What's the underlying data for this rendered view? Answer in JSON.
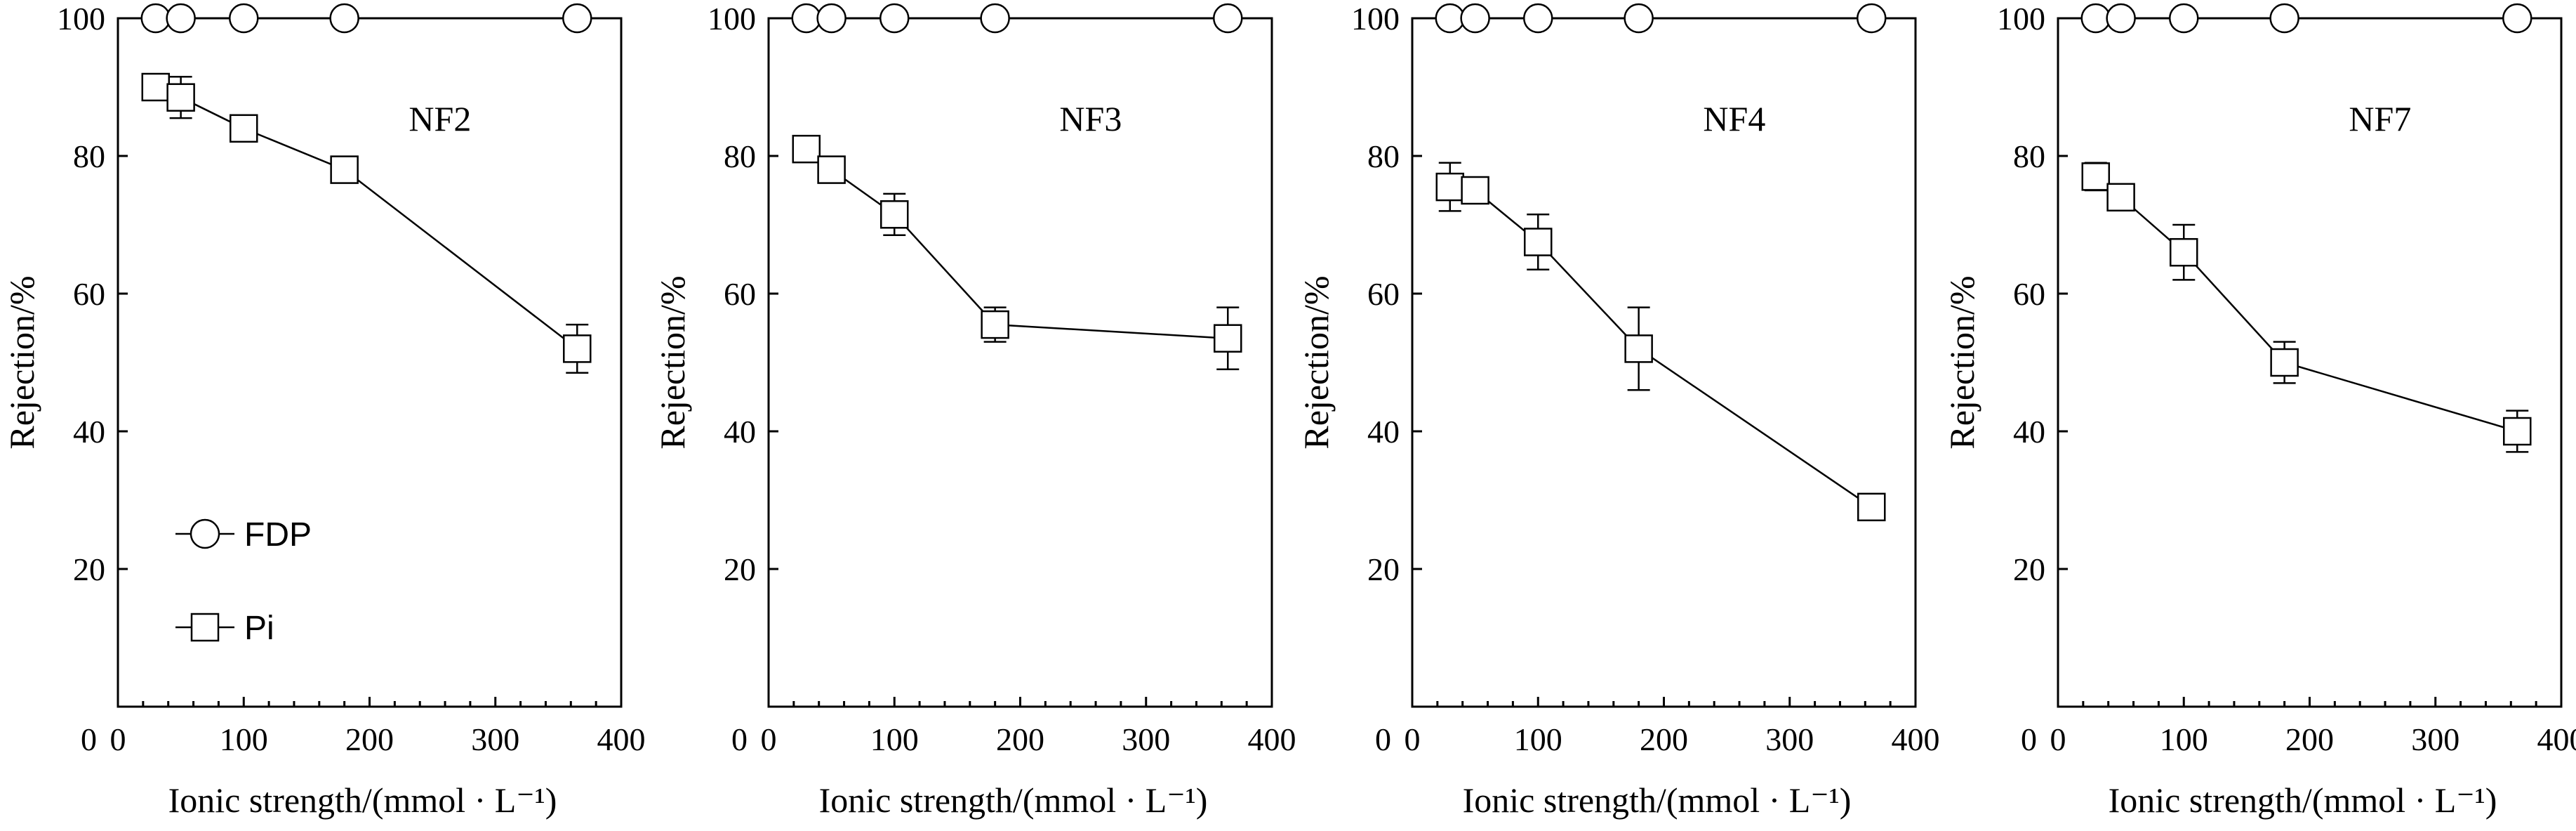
{
  "chart_data": [
    {
      "type": "scatter",
      "panel_label": "NF2",
      "xlabel": "Ionic strength/(mmol · L⁻¹)",
      "ylabel": "Rejection/%",
      "xlim": [
        0,
        400
      ],
      "ylim": [
        0,
        100
      ],
      "xticks": [
        0,
        100,
        200,
        300,
        400
      ],
      "yticks": [
        20,
        40,
        60,
        80,
        100
      ],
      "show_legend": true,
      "legend": [
        "FDP",
        "Pi"
      ],
      "series": [
        {
          "name": "FDP",
          "marker": "circle",
          "connected": false,
          "x": [
            30,
            50,
            100,
            180,
            365
          ],
          "y": [
            100,
            100,
            100,
            100,
            100
          ],
          "err": [
            0,
            0,
            0,
            0,
            0
          ]
        },
        {
          "name": "Pi",
          "marker": "square",
          "connected": true,
          "x": [
            30,
            50,
            100,
            180,
            365
          ],
          "y": [
            90,
            88.5,
            84,
            78,
            52
          ],
          "err": [
            0,
            3,
            1,
            0,
            3.5
          ]
        }
      ]
    },
    {
      "type": "scatter",
      "panel_label": "NF3",
      "xlabel": "Ionic strength/(mmol · L⁻¹)",
      "ylabel": "Rejection/%",
      "xlim": [
        0,
        400
      ],
      "ylim": [
        0,
        100
      ],
      "xticks": [
        0,
        100,
        200,
        300,
        400
      ],
      "yticks": [
        20,
        40,
        60,
        80,
        100
      ],
      "show_legend": false,
      "legend": [],
      "series": [
        {
          "name": "FDP",
          "marker": "circle",
          "connected": false,
          "x": [
            30,
            50,
            100,
            180,
            365
          ],
          "y": [
            100,
            100,
            100,
            100,
            100
          ],
          "err": [
            0,
            0,
            0,
            0,
            0
          ]
        },
        {
          "name": "Pi",
          "marker": "square",
          "connected": true,
          "x": [
            30,
            50,
            100,
            180,
            365
          ],
          "y": [
            81,
            78,
            71.5,
            55.5,
            53.5
          ],
          "err": [
            0,
            1.5,
            3,
            2.5,
            4.5
          ]
        }
      ]
    },
    {
      "type": "scatter",
      "panel_label": "NF4",
      "xlabel": "Ionic strength/(mmol · L⁻¹)",
      "ylabel": "Rejection/%",
      "xlim": [
        0,
        400
      ],
      "ylim": [
        0,
        100
      ],
      "xticks": [
        0,
        100,
        200,
        300,
        400
      ],
      "yticks": [
        20,
        40,
        60,
        80,
        100
      ],
      "show_legend": false,
      "legend": [],
      "series": [
        {
          "name": "FDP",
          "marker": "circle",
          "connected": false,
          "x": [
            30,
            50,
            100,
            180,
            365
          ],
          "y": [
            100,
            100,
            100,
            100,
            100
          ],
          "err": [
            0,
            0,
            0,
            0,
            0
          ]
        },
        {
          "name": "Pi",
          "marker": "square",
          "connected": true,
          "x": [
            30,
            50,
            100,
            180,
            365
          ],
          "y": [
            75.5,
            75,
            67.5,
            52,
            29
          ],
          "err": [
            3.5,
            1,
            4,
            6,
            1
          ]
        }
      ]
    },
    {
      "type": "scatter",
      "panel_label": "NF7",
      "xlabel": "Ionic strength/(mmol · L⁻¹)",
      "ylabel": "Rejection/%",
      "xlim": [
        0,
        400
      ],
      "ylim": [
        0,
        100
      ],
      "xticks": [
        0,
        100,
        200,
        300,
        400
      ],
      "yticks": [
        20,
        40,
        60,
        80,
        100
      ],
      "show_legend": false,
      "legend": [],
      "series": [
        {
          "name": "FDP",
          "marker": "circle",
          "connected": false,
          "x": [
            30,
            50,
            100,
            180,
            365
          ],
          "y": [
            100,
            100,
            100,
            100,
            100
          ],
          "err": [
            0,
            0,
            0,
            0,
            0
          ]
        },
        {
          "name": "Pi",
          "marker": "square",
          "connected": true,
          "x": [
            30,
            50,
            100,
            180,
            365
          ],
          "y": [
            77,
            74,
            66,
            50,
            40
          ],
          "err": [
            2,
            1,
            4,
            3,
            3
          ]
        }
      ]
    }
  ]
}
